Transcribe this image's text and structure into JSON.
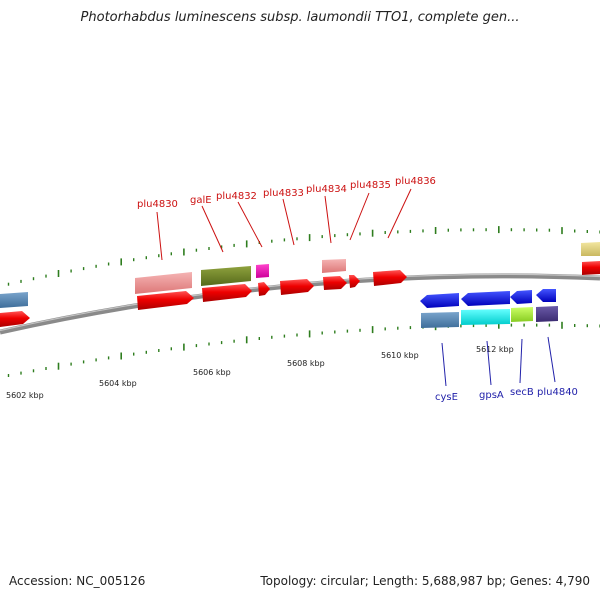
{
  "title": "Photorhabdus luminescens subsp. laumondii TTO1, complete gen...",
  "footer": {
    "accession": "Accession: NC_005126",
    "summary": "Topology: circular; Length: 5,688,987 bp; Genes: 4,790"
  },
  "colors": {
    "backbone": "#8a8a8a",
    "tick": "#2e7d1e",
    "forward_label": "#cc1111",
    "reverse_label": "#2222aa"
  },
  "scale_labels": [
    "5602 kbp",
    "5604 kbp",
    "5606 kbp",
    "5608 kbp",
    "5610 kbp",
    "5612 kbp"
  ],
  "forward_genes": [
    "plu4830",
    "galE",
    "plu4832",
    "plu4833",
    "plu4834",
    "plu4835",
    "plu4836"
  ],
  "reverse_genes": [
    "cysE",
    "gpsA",
    "secB",
    "plu4840"
  ]
}
